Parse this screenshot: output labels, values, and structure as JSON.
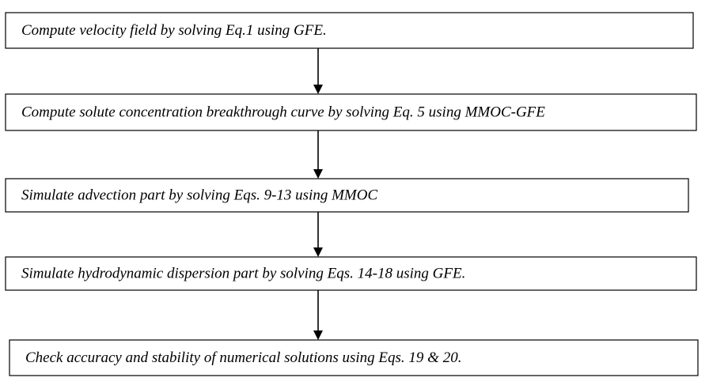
{
  "nodes": [
    {
      "label": "Compute velocity field by solving Eq.1 using GFE."
    },
    {
      "label": "Compute solute concentration breakthrough curve by solving Eq. 5 using MMOC-GFE"
    },
    {
      "label": "Simulate advection part by solving Eqs. 9-13 using MMOC"
    },
    {
      "label": "Simulate hydrodynamic dispersion part by solving Eqs. 14-18 using GFE."
    },
    {
      "label": "Check accuracy and stability of numerical solutions using Eqs. 19 & 20."
    }
  ]
}
